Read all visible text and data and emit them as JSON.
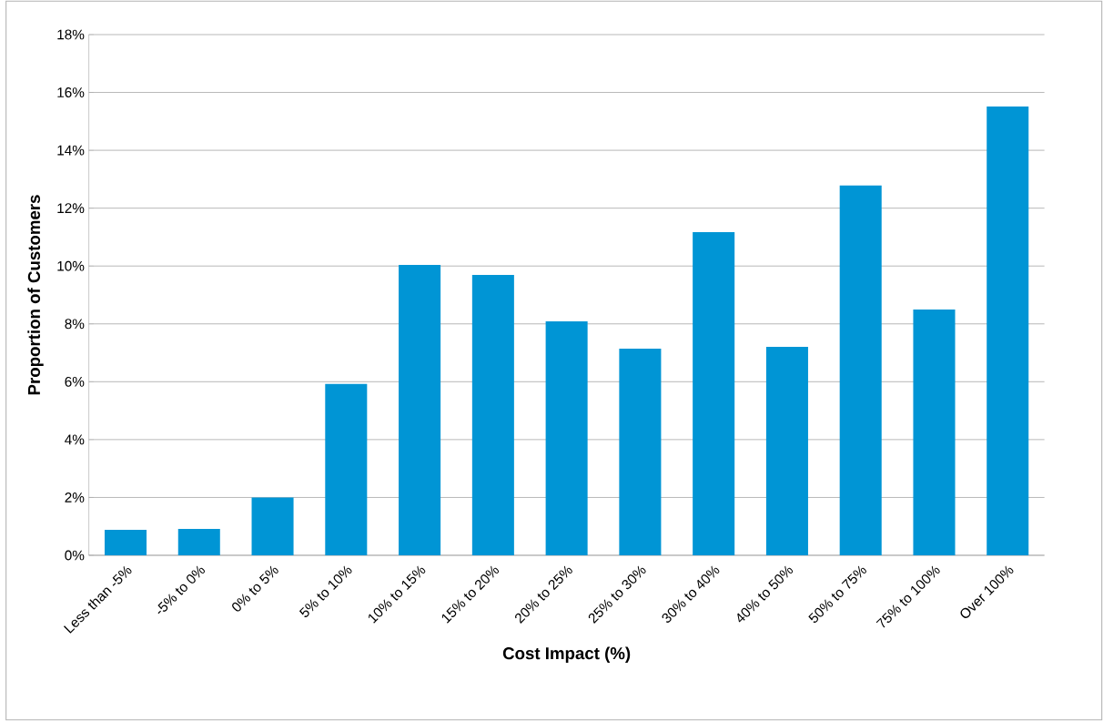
{
  "chart_data": {
    "type": "bar",
    "xlabel": "Cost Impact (%)",
    "ylabel": "Proportion of Customers",
    "categories": [
      "Less than -5%",
      "-5% to 0%",
      "0% to 5%",
      "5% to 10%",
      "10% to 15%",
      "15% to 20%",
      "20% to 25%",
      "25% to 30%",
      "30% to 40%",
      "40% to 50%",
      "50% to 75%",
      "75% to 100%",
      "Over 100%"
    ],
    "values": [
      0.88,
      0.91,
      2.0,
      5.92,
      10.04,
      9.69,
      8.09,
      7.14,
      11.17,
      7.21,
      12.78,
      8.5,
      15.51
    ],
    "color": "#0095d5",
    "ylim": [
      0,
      18
    ],
    "yticks": [
      {
        "value": 0,
        "label": "0%"
      },
      {
        "value": 2,
        "label": "2%"
      },
      {
        "value": 4,
        "label": "4%"
      },
      {
        "value": 6,
        "label": "6%"
      },
      {
        "value": 8,
        "label": "8%"
      },
      {
        "value": 10,
        "label": "10%"
      },
      {
        "value": 12,
        "label": "12%"
      },
      {
        "value": 14,
        "label": "14%"
      },
      {
        "value": 16,
        "label": "16%"
      },
      {
        "value": 18,
        "label": "18%"
      }
    ],
    "grid": "y"
  }
}
